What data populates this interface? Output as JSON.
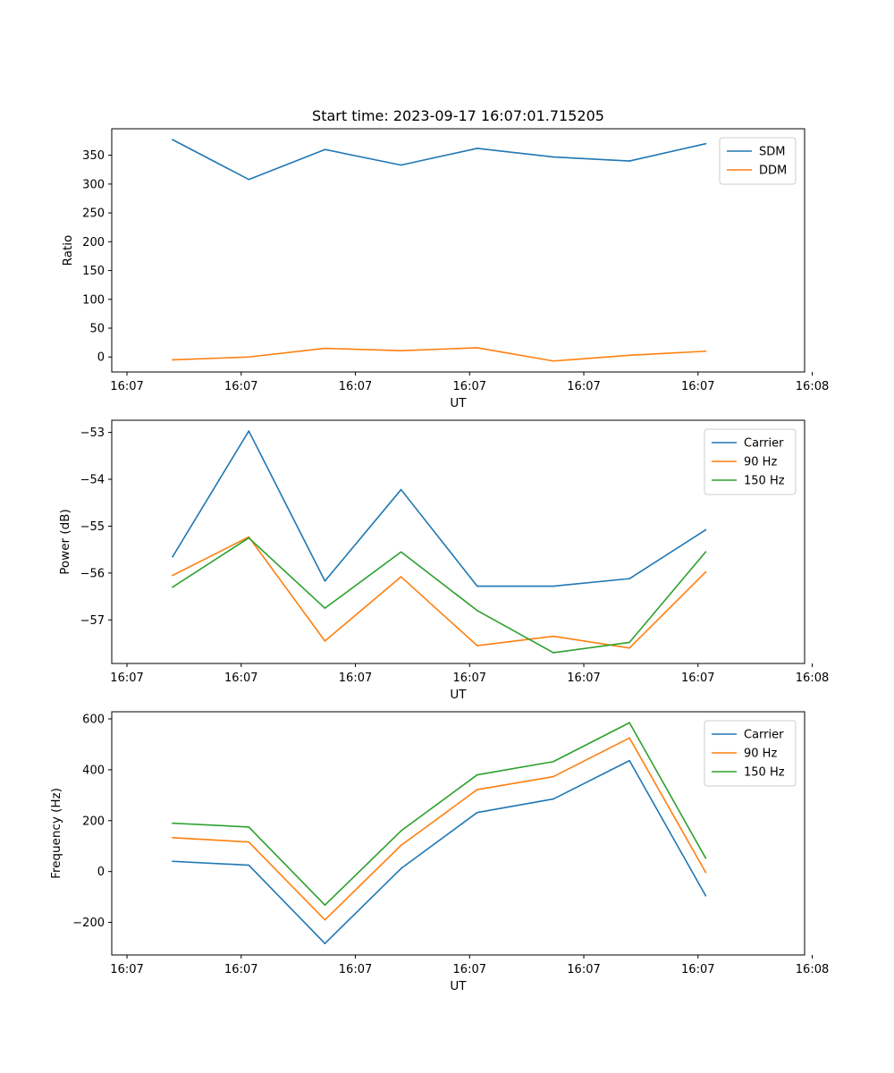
{
  "figure": {
    "title": "Start time: 2023-09-17 16:07:01.715205"
  },
  "colors": {
    "blue": "#1f77b4",
    "orange": "#ff7f0e",
    "green": "#2ca02c"
  },
  "chart_data": [
    {
      "type": "line",
      "title": "Start time: 2023-09-17 16:07:01.715205",
      "xlabel": "UT",
      "ylabel": "Ratio",
      "x": [
        1,
        2,
        3,
        4,
        5,
        6,
        7,
        8
      ],
      "xlim": [
        0.2,
        9.3
      ],
      "xticks": [
        0.4,
        1.9,
        3.4,
        4.9,
        6.4,
        7.9,
        9.4
      ],
      "xtick_labels": [
        "16:07",
        "16:07",
        "16:07",
        "16:07",
        "16:07",
        "16:07",
        "16:08"
      ],
      "ylim": [
        -26,
        396
      ],
      "yticks": [
        0,
        50,
        100,
        150,
        200,
        250,
        300,
        350
      ],
      "ytick_labels": [
        "0",
        "50",
        "100",
        "150",
        "200",
        "250",
        "300",
        "350"
      ],
      "legend_loc": "upper right",
      "series": [
        {
          "name": "SDM",
          "color": "#1f77b4",
          "values": [
            377,
            308,
            360,
            333,
            362,
            347,
            340,
            370
          ]
        },
        {
          "name": "DDM",
          "color": "#ff7f0e",
          "values": [
            -5,
            0,
            15,
            11,
            16,
            -7,
            3,
            10
          ]
        }
      ]
    },
    {
      "type": "line",
      "xlabel": "UT",
      "ylabel": "Power (dB)",
      "x": [
        1,
        2,
        3,
        4,
        5,
        6,
        7,
        8
      ],
      "xlim": [
        0.2,
        9.3
      ],
      "xticks": [
        0.4,
        1.9,
        3.4,
        4.9,
        6.4,
        7.9,
        9.4
      ],
      "xtick_labels": [
        "16:07",
        "16:07",
        "16:07",
        "16:07",
        "16:07",
        "16:07",
        "16:08"
      ],
      "ylim": [
        -57.93,
        -52.74
      ],
      "yticks": [
        -57,
        -56,
        -55,
        -54,
        -53
      ],
      "ytick_labels": [
        "−57",
        "−56",
        "−55",
        "−54",
        "−53"
      ],
      "legend_loc": "upper right",
      "series": [
        {
          "name": "Carrier",
          "color": "#1f77b4",
          "values": [
            -55.65,
            -52.97,
            -56.17,
            -54.22,
            -56.28,
            -56.28,
            -56.12,
            -55.08
          ]
        },
        {
          "name": "90 Hz",
          "color": "#ff7f0e",
          "values": [
            -56.05,
            -55.23,
            -57.45,
            -56.08,
            -57.55,
            -57.35,
            -57.6,
            -55.98
          ]
        },
        {
          "name": "150 Hz",
          "color": "#2ca02c",
          "values": [
            -56.3,
            -55.25,
            -56.75,
            -55.55,
            -56.8,
            -57.7,
            -57.48,
            -55.55
          ]
        }
      ]
    },
    {
      "type": "line",
      "xlabel": "UT",
      "ylabel": "Frequency (Hz)",
      "x": [
        1,
        2,
        3,
        4,
        5,
        6,
        7,
        8
      ],
      "xlim": [
        0.2,
        9.3
      ],
      "xticks": [
        0.4,
        1.9,
        3.4,
        4.9,
        6.4,
        7.9,
        9.4
      ],
      "xtick_labels": [
        "16:07",
        "16:07",
        "16:07",
        "16:07",
        "16:07",
        "16:07",
        "16:08"
      ],
      "ylim": [
        -328,
        628
      ],
      "yticks": [
        -200,
        0,
        200,
        400,
        600
      ],
      "ytick_labels": [
        "−200",
        "0",
        "200",
        "400",
        "600"
      ],
      "legend_loc": "upper right",
      "series": [
        {
          "name": "Carrier",
          "color": "#1f77b4",
          "values": [
            40,
            25,
            -283,
            12,
            232,
            285,
            436,
            -95
          ]
        },
        {
          "name": "90 Hz",
          "color": "#ff7f0e",
          "values": [
            133,
            116,
            -190,
            103,
            322,
            373,
            525,
            -3
          ]
        },
        {
          "name": "150 Hz",
          "color": "#2ca02c",
          "values": [
            190,
            175,
            -132,
            160,
            380,
            432,
            585,
            53
          ]
        }
      ]
    }
  ]
}
